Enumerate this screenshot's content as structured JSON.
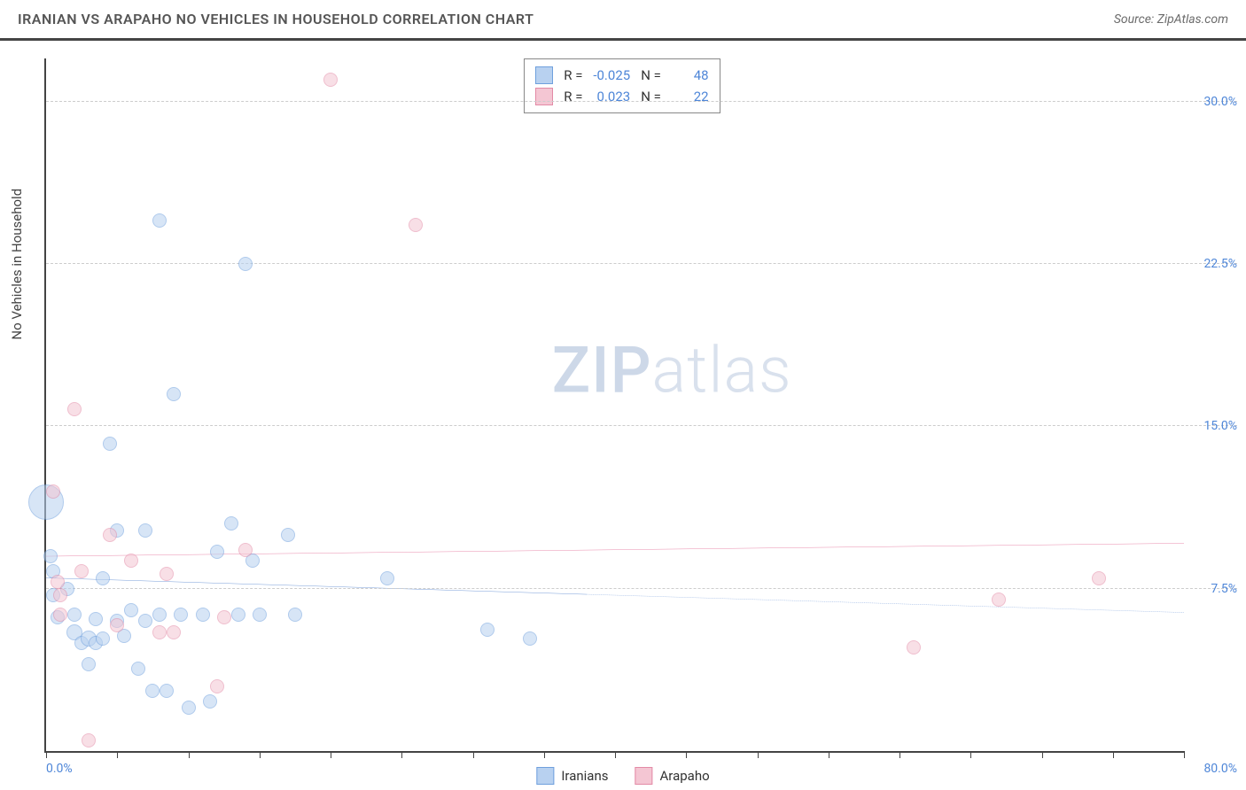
{
  "header": {
    "title": "IRANIAN VS ARAPAHO NO VEHICLES IN HOUSEHOLD CORRELATION CHART",
    "source": "Source: ZipAtlas.com"
  },
  "ylabel": "No Vehicles in Household",
  "watermark": {
    "zip": "ZIP",
    "atlas": "atlas"
  },
  "chart": {
    "type": "scatter",
    "xlim": [
      0,
      80
    ],
    "ylim": [
      0,
      32
    ],
    "yticks": [
      {
        "v": 7.5,
        "label": "7.5%"
      },
      {
        "v": 15.0,
        "label": "15.0%"
      },
      {
        "v": 22.5,
        "label": "22.5%"
      },
      {
        "v": 30.0,
        "label": "30.0%"
      }
    ],
    "xticks": [
      0,
      5,
      10,
      15,
      20,
      25,
      30,
      35,
      40,
      45,
      50,
      55,
      60,
      65,
      70,
      75,
      80
    ],
    "xlabel_min": "0.0%",
    "xlabel_max": "80.0%",
    "background_color": "#ffffff",
    "grid_color": "#cccccc",
    "axis_color": "#444444",
    "tick_label_color": "#4e86d8",
    "series": [
      {
        "name": "Iranians",
        "fill": "#b8d1f0",
        "stroke": "#6fa0dd",
        "fill_opacity": 0.55,
        "trend": {
          "y_left": 8.0,
          "y_right": 6.4,
          "solid_until_x": 38,
          "color": "#3e74c9",
          "width": 2
        },
        "corr": {
          "r": "-0.025",
          "n": "48"
        },
        "points": [
          {
            "x": 0.0,
            "y": 11.5,
            "r": 20
          },
          {
            "x": 0.3,
            "y": 9.0,
            "r": 8
          },
          {
            "x": 0.5,
            "y": 8.3,
            "r": 8
          },
          {
            "x": 0.5,
            "y": 7.2,
            "r": 8
          },
          {
            "x": 0.8,
            "y": 6.2,
            "r": 8
          },
          {
            "x": 1.5,
            "y": 7.5,
            "r": 8
          },
          {
            "x": 2.0,
            "y": 5.5,
            "r": 9
          },
          {
            "x": 2.0,
            "y": 6.3,
            "r": 8
          },
          {
            "x": 2.5,
            "y": 5.0,
            "r": 8
          },
          {
            "x": 3.0,
            "y": 5.2,
            "r": 9
          },
          {
            "x": 3.0,
            "y": 4.0,
            "r": 8
          },
          {
            "x": 3.5,
            "y": 6.1,
            "r": 8
          },
          {
            "x": 3.5,
            "y": 5.0,
            "r": 8
          },
          {
            "x": 4.0,
            "y": 8.0,
            "r": 8
          },
          {
            "x": 4.0,
            "y": 5.2,
            "r": 8
          },
          {
            "x": 4.5,
            "y": 14.2,
            "r": 8
          },
          {
            "x": 5.0,
            "y": 10.2,
            "r": 8
          },
          {
            "x": 5.0,
            "y": 6.0,
            "r": 8
          },
          {
            "x": 5.5,
            "y": 5.3,
            "r": 8
          },
          {
            "x": 6.0,
            "y": 6.5,
            "r": 8
          },
          {
            "x": 6.5,
            "y": 3.8,
            "r": 8
          },
          {
            "x": 7.0,
            "y": 10.2,
            "r": 8
          },
          {
            "x": 7.0,
            "y": 6.0,
            "r": 8
          },
          {
            "x": 7.5,
            "y": 2.8,
            "r": 8
          },
          {
            "x": 8.0,
            "y": 24.5,
            "r": 8
          },
          {
            "x": 8.0,
            "y": 6.3,
            "r": 8
          },
          {
            "x": 8.5,
            "y": 2.8,
            "r": 8
          },
          {
            "x": 9.0,
            "y": 16.5,
            "r": 8
          },
          {
            "x": 9.5,
            "y": 6.3,
            "r": 8
          },
          {
            "x": 10.0,
            "y": 2.0,
            "r": 8
          },
          {
            "x": 11.0,
            "y": 6.3,
            "r": 8
          },
          {
            "x": 11.5,
            "y": 2.3,
            "r": 8
          },
          {
            "x": 12.0,
            "y": 9.2,
            "r": 8
          },
          {
            "x": 13.0,
            "y": 10.5,
            "r": 8
          },
          {
            "x": 13.5,
            "y": 6.3,
            "r": 8
          },
          {
            "x": 14.0,
            "y": 22.5,
            "r": 8
          },
          {
            "x": 14.5,
            "y": 8.8,
            "r": 8
          },
          {
            "x": 15.0,
            "y": 6.3,
            "r": 8
          },
          {
            "x": 17.0,
            "y": 10.0,
            "r": 8
          },
          {
            "x": 17.5,
            "y": 6.3,
            "r": 8
          },
          {
            "x": 24.0,
            "y": 8.0,
            "r": 8
          },
          {
            "x": 31.0,
            "y": 5.6,
            "r": 8
          },
          {
            "x": 34.0,
            "y": 5.2,
            "r": 8
          }
        ]
      },
      {
        "name": "Arapaho",
        "fill": "#f4c6d3",
        "stroke": "#e38aa6",
        "fill_opacity": 0.55,
        "trend": {
          "y_left": 9.0,
          "y_right": 9.6,
          "solid_until_x": 80,
          "color": "#e05a8a",
          "width": 2
        },
        "corr": {
          "r": "0.023",
          "n": "22"
        },
        "points": [
          {
            "x": 0.5,
            "y": 12.0,
            "r": 8
          },
          {
            "x": 0.8,
            "y": 7.8,
            "r": 8
          },
          {
            "x": 1.0,
            "y": 7.2,
            "r": 8
          },
          {
            "x": 1.0,
            "y": 6.3,
            "r": 8
          },
          {
            "x": 2.0,
            "y": 15.8,
            "r": 8
          },
          {
            "x": 2.5,
            "y": 8.3,
            "r": 8
          },
          {
            "x": 3.0,
            "y": 0.5,
            "r": 8
          },
          {
            "x": 4.5,
            "y": 10.0,
            "r": 8
          },
          {
            "x": 5.0,
            "y": 5.8,
            "r": 8
          },
          {
            "x": 6.0,
            "y": 8.8,
            "r": 8
          },
          {
            "x": 8.0,
            "y": 5.5,
            "r": 8
          },
          {
            "x": 8.5,
            "y": 8.2,
            "r": 8
          },
          {
            "x": 9.0,
            "y": 5.5,
            "r": 8
          },
          {
            "x": 12.0,
            "y": 3.0,
            "r": 8
          },
          {
            "x": 12.5,
            "y": 6.2,
            "r": 8
          },
          {
            "x": 14.0,
            "y": 9.3,
            "r": 8
          },
          {
            "x": 20.0,
            "y": 31.0,
            "r": 8
          },
          {
            "x": 26.0,
            "y": 24.3,
            "r": 8
          },
          {
            "x": 61.0,
            "y": 4.8,
            "r": 8
          },
          {
            "x": 67.0,
            "y": 7.0,
            "r": 8
          },
          {
            "x": 74.0,
            "y": 8.0,
            "r": 8
          }
        ]
      }
    ]
  },
  "bottom_legend": [
    {
      "label": "Iranians",
      "fill": "#b8d1f0",
      "stroke": "#6fa0dd"
    },
    {
      "label": "Arapaho",
      "fill": "#f4c6d3",
      "stroke": "#e38aa6"
    }
  ]
}
